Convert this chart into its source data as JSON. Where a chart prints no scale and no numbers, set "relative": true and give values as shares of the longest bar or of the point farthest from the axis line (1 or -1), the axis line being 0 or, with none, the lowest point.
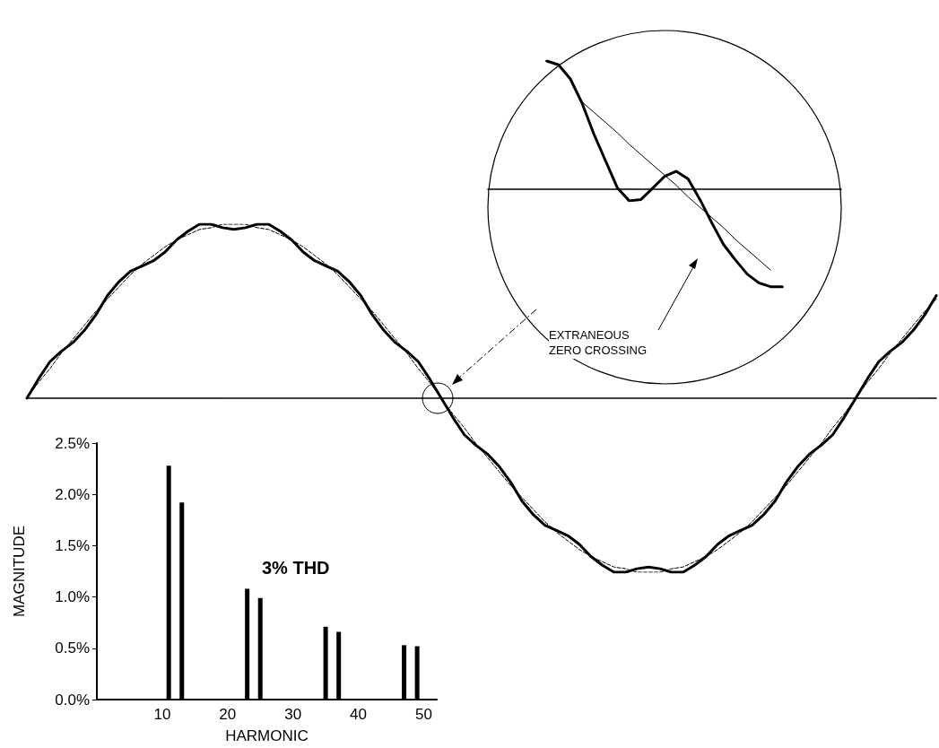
{
  "chart_data": [
    {
      "type": "line",
      "relative": true,
      "marker": "none",
      "annotations": [
        "EXTRANEOUS ZERO CROSSING"
      ],
      "categories": [
        null,
        null,
        null,
        null,
        null,
        null,
        null,
        null,
        null,
        null,
        null,
        null,
        null,
        null,
        null,
        null,
        null,
        null,
        null,
        null,
        null,
        null,
        null,
        null,
        null,
        null,
        null,
        null,
        null,
        null,
        null,
        null,
        null,
        null,
        null,
        null,
        null,
        null,
        null,
        null,
        null,
        null,
        null,
        null,
        null,
        null,
        null,
        null,
        null,
        null,
        null,
        null,
        null,
        null,
        null,
        null,
        null,
        null,
        null,
        null,
        null,
        null,
        null,
        null,
        null,
        null,
        null,
        null,
        null,
        null,
        null,
        null,
        null,
        null,
        null,
        null,
        null,
        null,
        null,
        null
      ],
      "series": [
        {
          "color": "#000000",
          "line_style": "dashed",
          "values": [
            0,
            0.09,
            0.17,
            0.26,
            0.34,
            0.42,
            0.5,
            0.57,
            0.64,
            0.71,
            0.77,
            0.82,
            0.87,
            0.91,
            0.94,
            0.97,
            0.98,
            1,
            1,
            1,
            0.98,
            0.97,
            0.94,
            0.91,
            0.87,
            0.82,
            0.77,
            0.71,
            0.64,
            0.57,
            0.5,
            0.42,
            0.34,
            0.26,
            0.17,
            0.09,
            0,
            -0.09,
            -0.17,
            -0.26,
            -0.34,
            -0.42,
            -0.5,
            -0.57,
            -0.64,
            -0.71,
            -0.77,
            -0.82,
            -0.87,
            -0.91,
            -0.94,
            -0.97,
            -0.98,
            -1,
            -1,
            -1,
            -0.98,
            -0.97,
            -0.94,
            -0.91,
            -0.87,
            -0.82,
            -0.77,
            -0.71,
            -0.64,
            -0.57,
            -0.5,
            -0.42,
            -0.34,
            -0.26,
            -0.17,
            -0.09,
            0,
            0.09,
            0.17,
            0.26,
            0.34,
            0.42,
            0.5,
            0.57
          ]
        },
        {
          "color": "#000000",
          "line_style": "solid",
          "values": [
            0,
            0.11,
            0.21,
            0.27,
            0.32,
            0.39,
            0.48,
            0.59,
            0.67,
            0.73,
            0.76,
            0.79,
            0.84,
            0.91,
            0.96,
            1,
            1,
            0.98,
            0.97,
            0.98,
            1,
            1,
            0.96,
            0.91,
            0.84,
            0.79,
            0.76,
            0.73,
            0.67,
            0.59,
            0.48,
            0.39,
            0.32,
            0.27,
            0.21,
            0.11,
            0,
            -0.11,
            -0.21,
            -0.27,
            -0.32,
            -0.39,
            -0.48,
            -0.59,
            -0.67,
            -0.73,
            -0.76,
            -0.79,
            -0.84,
            -0.91,
            -0.96,
            -1,
            -1,
            -0.98,
            -0.97,
            -0.98,
            -1,
            -1,
            -0.96,
            -0.91,
            -0.84,
            -0.79,
            -0.76,
            -0.73,
            -0.67,
            -0.59,
            -0.48,
            -0.39,
            -0.32,
            -0.27,
            -0.21,
            -0.11,
            0,
            0.11,
            0.21,
            0.27,
            0.32,
            0.39,
            0.48,
            0.59
          ]
        }
      ]
    },
    {
      "type": "bar",
      "xlabel": "HARMONIC",
      "ylabel": "MAGNITUDE",
      "annotations": [
        "3% THD"
      ],
      "color": "#000000",
      "x": [
        11,
        13,
        23,
        25,
        35,
        37,
        47,
        49
      ],
      "values": [
        2.28,
        1.92,
        1.08,
        0.99,
        0.71,
        0.66,
        0.53,
        0.52
      ],
      "xlim": [
        0,
        52
      ],
      "xticks": [
        10,
        20,
        30,
        40,
        50
      ],
      "ylim": [
        0,
        2.5
      ],
      "yticks": [
        {
          "value": 0,
          "label": "0.0%"
        },
        {
          "value": 0.5,
          "label": "0.5%"
        },
        {
          "value": 1,
          "label": "1.0%"
        },
        {
          "value": 1.5,
          "label": "1.5%"
        },
        {
          "value": 2,
          "label": "2.0%"
        },
        {
          "value": 2.5,
          "label": "2.5%"
        }
      ]
    },
    {
      "type": "line",
      "relative": true,
      "marker": "none",
      "categories": [
        null,
        null,
        null,
        null,
        null,
        null,
        null,
        null,
        null,
        null,
        null,
        null,
        null,
        null,
        null,
        null,
        null,
        null,
        null,
        null,
        null,
        null,
        null,
        null,
        null,
        null,
        null,
        null,
        null,
        null,
        null
      ],
      "series": [
        {
          "color": "#000000",
          "line_style": "solid",
          "values": [
            null,
            null,
            null,
            null,
            null,
            null,
            null,
            null,
            0.68,
            0.6,
            0.52,
            0.44,
            0.35,
            0.27,
            0.19,
            0.11,
            0.03,
            -0.06,
            -0.14,
            -0.22,
            -0.3,
            -0.39,
            -0.47,
            -0.55,
            -0.63,
            null,
            null,
            null,
            null,
            null,
            null
          ]
        },
        {
          "color": "#000000",
          "line_style": "solid",
          "values": [
            null,
            null,
            null,
            null,
            null,
            1,
            0.97,
            0.86,
            0.67,
            0.43,
            0.22,
            0.01,
            -0.09,
            -0.08,
            0.01,
            0.1,
            0.14,
            0.08,
            -0.08,
            -0.26,
            -0.43,
            -0.55,
            -0.66,
            -0.73,
            -0.76,
            -0.76,
            null,
            null,
            null,
            null,
            null
          ]
        }
      ]
    }
  ]
}
